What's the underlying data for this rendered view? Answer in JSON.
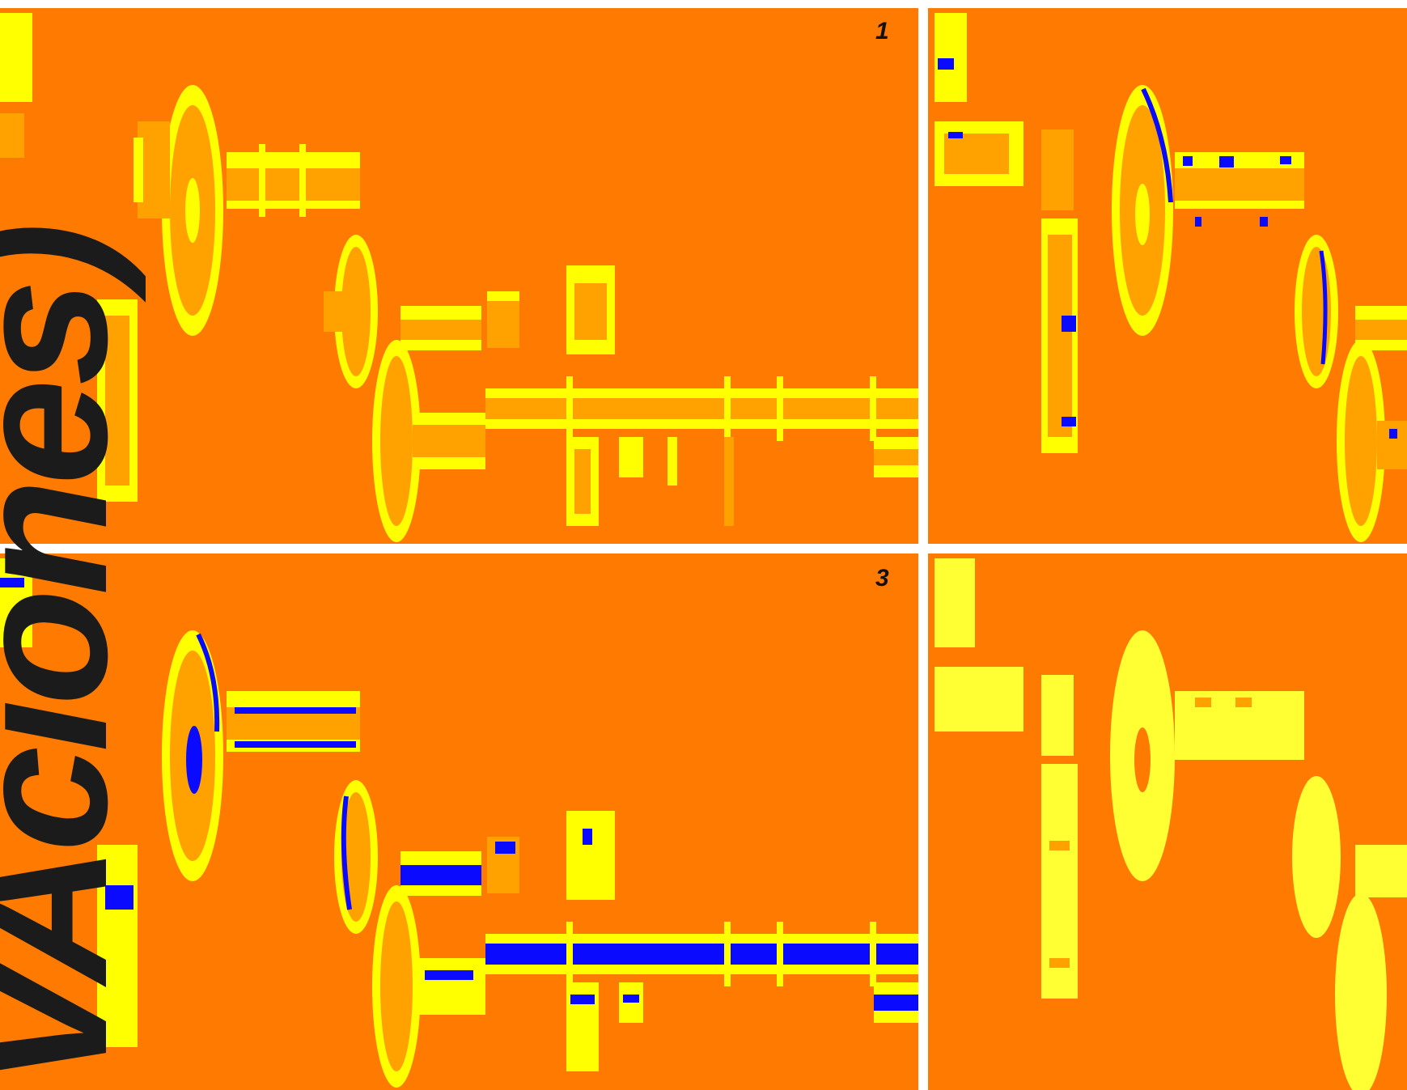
{
  "colors": {
    "background": "#ff7a00",
    "part_fill": "#ffa200",
    "part_highlight": "#ffff00",
    "hole": "#0a0aff",
    "light_part": "#ffff33",
    "text": "#1b1b1b"
  },
  "panels": [
    {
      "number": "1"
    },
    {
      "number": ""
    },
    {
      "number": "3"
    },
    {
      "number": ""
    }
  ],
  "overlay_text": "VAciones)"
}
